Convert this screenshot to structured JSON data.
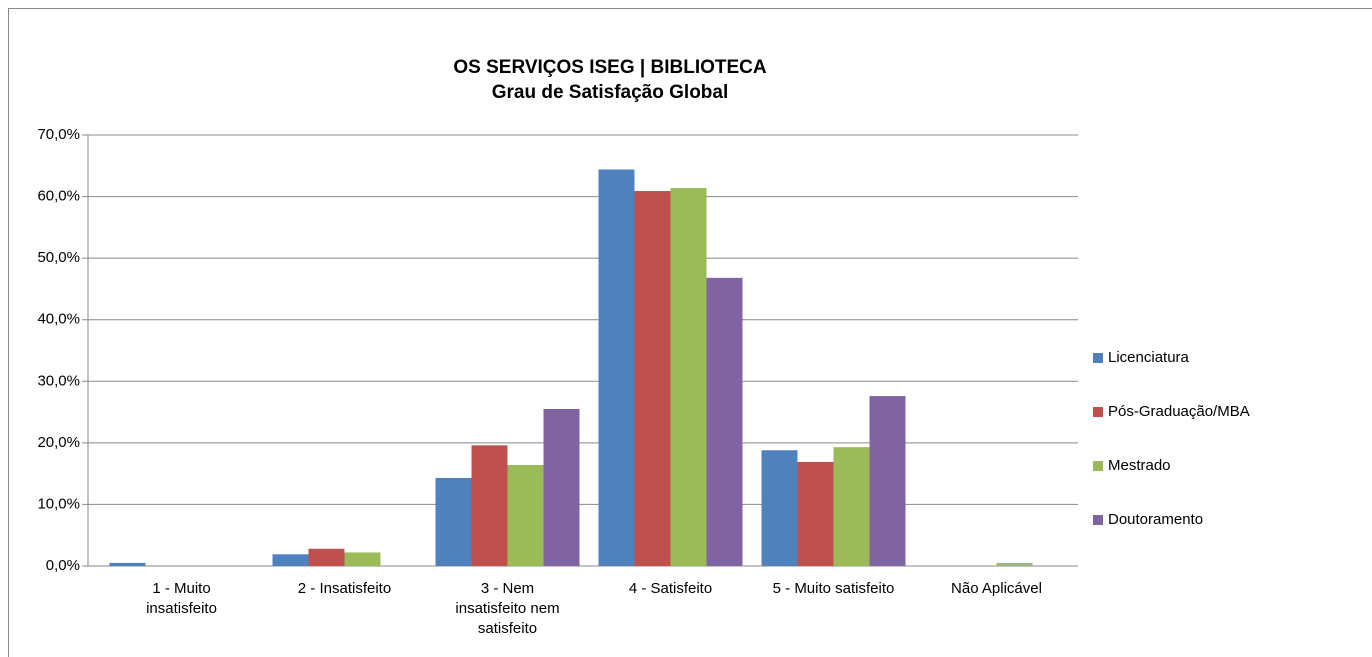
{
  "chart_data": {
    "type": "bar",
    "title": "OS SERVIÇOS ISEG  | BIBLIOTECA",
    "subtitle": "Grau de Satisfação Global",
    "categories": [
      "1 - Muito insatisfeito",
      "2 - Insatisfeito",
      "3 - Nem insatisfeito nem satisfeito",
      "4 - Satisfeito",
      "5 - Muito satisfeito",
      "Não Aplicável"
    ],
    "series": [
      {
        "name": "Licenciatura",
        "color": "#4f81bd",
        "values": [
          0.5,
          1.9,
          14.3,
          64.4,
          18.8,
          0
        ]
      },
      {
        "name": "Pós-Graduação/MBA",
        "color": "#c0504d",
        "values": [
          0,
          2.8,
          19.6,
          60.9,
          16.9,
          0
        ]
      },
      {
        "name": "Mestrado",
        "color": "#9bbb59",
        "values": [
          0,
          2.2,
          16.4,
          61.4,
          19.3,
          0.5
        ]
      },
      {
        "name": "Doutoramento",
        "color": "#8064a2",
        "values": [
          0,
          0,
          25.5,
          46.8,
          27.6,
          0
        ]
      }
    ],
    "ylim": [
      0,
      70
    ],
    "yticks": [
      {
        "value": 0,
        "label": "0,0%"
      },
      {
        "value": 10,
        "label": "10,0%"
      },
      {
        "value": 20,
        "label": "20,0%"
      },
      {
        "value": 30,
        "label": "30,0%"
      },
      {
        "value": 40,
        "label": "40,0%"
      },
      {
        "value": 50,
        "label": "50,0%"
      },
      {
        "value": 60,
        "label": "60,0%"
      },
      {
        "value": 70,
        "label": "70,0%"
      }
    ],
    "grid": true,
    "legend": "right"
  }
}
